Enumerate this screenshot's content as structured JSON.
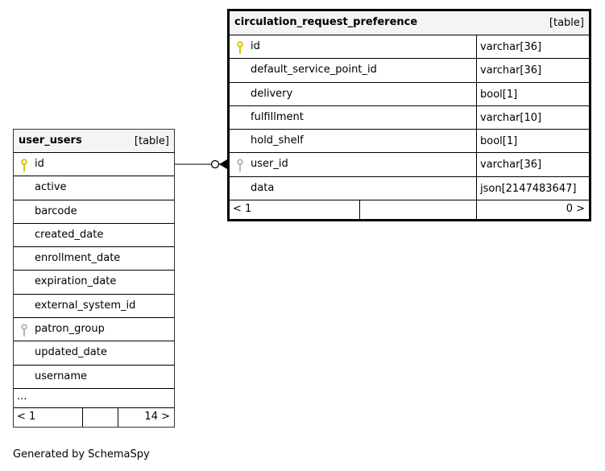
{
  "tables": [
    {
      "id": "user_users",
      "name": "user_users",
      "type_label": "[table]",
      "focus": false,
      "columns": [
        {
          "name": "id",
          "key": "primary"
        },
        {
          "name": "active"
        },
        {
          "name": "barcode"
        },
        {
          "name": "created_date"
        },
        {
          "name": "enrollment_date"
        },
        {
          "name": "expiration_date"
        },
        {
          "name": "external_system_id"
        },
        {
          "name": "patron_group",
          "key": "foreign"
        },
        {
          "name": "updated_date"
        },
        {
          "name": "username"
        }
      ],
      "ellipsis": "...",
      "footer": {
        "left": "< 1",
        "right": "14 >"
      }
    },
    {
      "id": "circulation_request_preference",
      "name": "circulation_request_preference",
      "type_label": "[table]",
      "focus": true,
      "columns": [
        {
          "name": "id",
          "type": "varchar[36]",
          "key": "primary"
        },
        {
          "name": "default_service_point_id",
          "type": "varchar[36]"
        },
        {
          "name": "delivery",
          "type": "bool[1]"
        },
        {
          "name": "fulfillment",
          "type": "varchar[10]"
        },
        {
          "name": "hold_shelf",
          "type": "bool[1]"
        },
        {
          "name": "user_id",
          "type": "varchar[36]",
          "key": "foreign"
        },
        {
          "name": "data",
          "type": "json[2147483647]"
        }
      ],
      "footer": {
        "left": "< 1",
        "right": "0 >"
      }
    }
  ],
  "relationship": {
    "from": "user_users.id",
    "to": "circulation_request_preference.user_id",
    "cardinality": "one-to-zero-or-many"
  },
  "colors": {
    "primary_key": "#d4c400",
    "foreign_key": "#b5b5b5",
    "header_bg": "#f4f4f4"
  },
  "footer_text": "Generated by SchemaSpy"
}
